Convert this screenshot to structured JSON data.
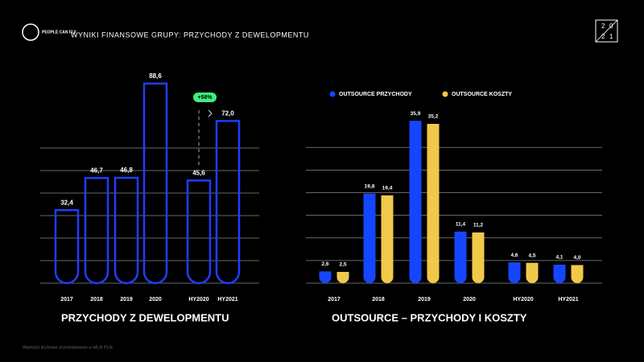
{
  "header": {
    "logo": "PEOPLE CAN FLY",
    "title": "WYNIKI FINANSOWE GRUPY: PRZYCHODY Z DEWELOPMENTU",
    "year_box": [
      "2",
      "0",
      "2",
      "1"
    ]
  },
  "footnote": "Wartości liczbowe przedstawione w MLN PLN",
  "chart_data": [
    {
      "type": "bar",
      "title": "PRZYCHODY Z DEWELOPMENTU",
      "style": "outline",
      "color": "#1f3dff",
      "categories": [
        "2017",
        "2018",
        "2019",
        "2020",
        "HY2020",
        "HY2021"
      ],
      "values": [
        32.4,
        46.7,
        46.8,
        88.6,
        45.6,
        72.0
      ],
      "value_labels": [
        "32,4",
        "46,7",
        "46,8",
        "88,6",
        "45,6",
        "72,0"
      ],
      "ylim": [
        0,
        90
      ],
      "gridlines": [
        0,
        10,
        20,
        30,
        40,
        50,
        60
      ],
      "annotation": "+58%"
    },
    {
      "type": "grouped-bar",
      "title": "OUTSOURCE – PRZYCHODY I KOSZTY",
      "categories": [
        "2017",
        "2018",
        "2019",
        "2020",
        "HY2020",
        "HY2021"
      ],
      "series": [
        {
          "name": "OUTSOURCE PRZYCHODY",
          "color": "#1546ff",
          "values": [
            2.6,
            19.8,
            35.9,
            11.4,
            4.6,
            4.1
          ],
          "value_labels": [
            "2,6",
            "19,8",
            "35,9",
            "11,4",
            "4,6",
            "4,1"
          ]
        },
        {
          "name": "OUTSOURCE KOSZTY",
          "color": "#f1c94a",
          "values": [
            2.5,
            19.4,
            35.2,
            11.2,
            4.5,
            4.0
          ],
          "value_labels": [
            "2,5",
            "19,4",
            "35,2",
            "11,2",
            "4,5",
            "4,0"
          ]
        }
      ],
      "ylim": [
        0,
        40
      ],
      "gridlines": [
        0,
        5,
        10,
        15,
        20,
        25,
        30
      ]
    }
  ]
}
